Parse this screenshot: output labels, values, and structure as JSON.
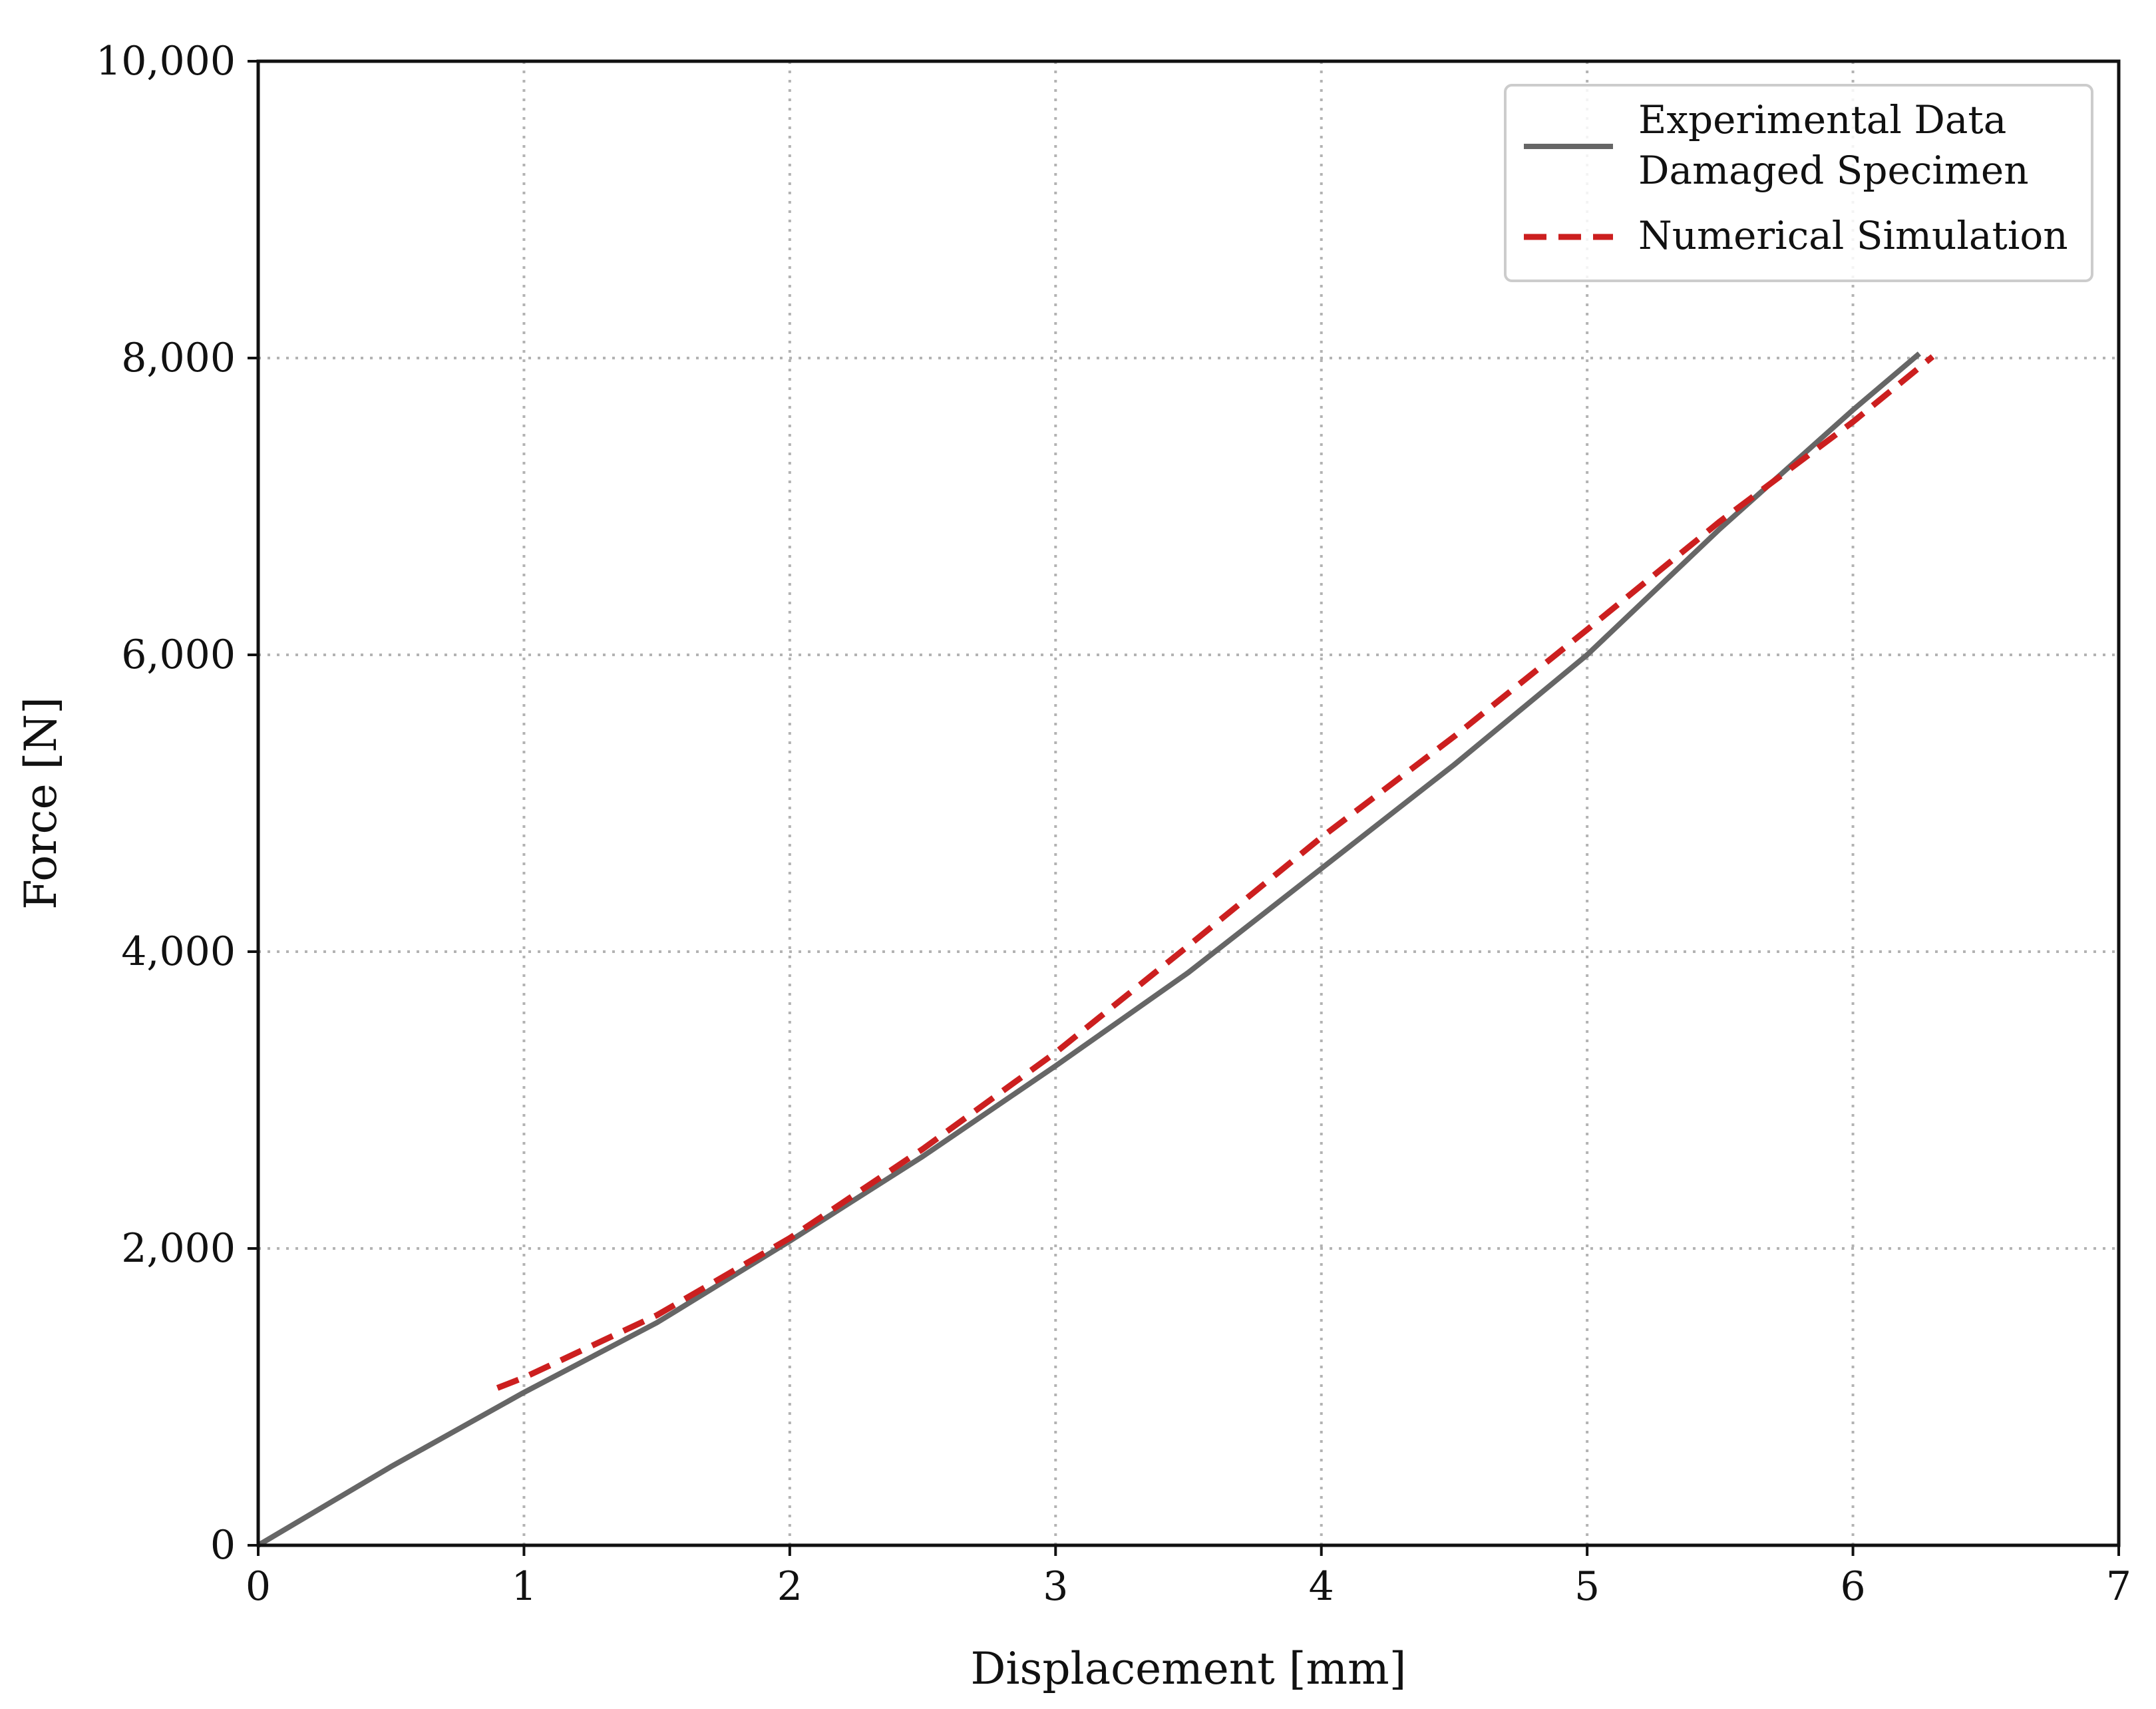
{
  "chart_data": {
    "type": "line",
    "xlabel": "Displacement [mm]",
    "ylabel": "Force [N]",
    "xlim": [
      0,
      7
    ],
    "ylim": [
      0,
      10000
    ],
    "x_ticks": [
      0,
      1,
      2,
      3,
      4,
      5,
      6,
      7
    ],
    "x_tick_labels": [
      "0",
      "1",
      "2",
      "3",
      "4",
      "5",
      "6",
      "7"
    ],
    "y_ticks": [
      0,
      2000,
      4000,
      6000,
      8000,
      10000
    ],
    "y_tick_labels": [
      "0",
      "2,000",
      "4,000",
      "6,000",
      "8,000",
      "10,000"
    ],
    "grid": true,
    "legend_position": "top-right",
    "series": [
      {
        "name": "Experimental Data Damaged Specimen",
        "legend_lines": [
          "Experimental Data",
          "Damaged Specimen"
        ],
        "color": "#666666",
        "style": "solid",
        "x": [
          0,
          0.5,
          1.0,
          1.5,
          2.0,
          2.5,
          3.0,
          3.5,
          4.0,
          4.5,
          5.0,
          5.5,
          6.0,
          6.25
        ],
        "y": [
          0,
          530,
          1030,
          1500,
          2050,
          2620,
          3230,
          3860,
          4560,
          5260,
          6000,
          6850,
          7650,
          8030
        ]
      },
      {
        "name": "Numerical Simulation",
        "legend_lines": [
          "Numerical Simulation"
        ],
        "color": "#cc1f1f",
        "style": "dashed",
        "x": [
          0.9,
          1.0,
          1.5,
          2.0,
          2.5,
          3.0,
          3.5,
          4.0,
          4.5,
          5.0,
          5.5,
          6.0,
          6.3
        ],
        "y": [
          1060,
          1130,
          1550,
          2070,
          2670,
          3320,
          4040,
          4770,
          5450,
          6170,
          6900,
          7570,
          8010
        ]
      }
    ]
  }
}
